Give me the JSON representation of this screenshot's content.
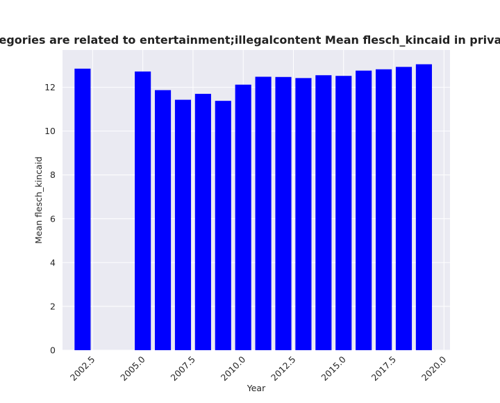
{
  "chart_data": {
    "type": "bar",
    "title": "Main categories are related to entertainment;illegalcontent Mean flesch_kincaid in privacy policies",
    "xlabel": "Year",
    "ylabel": "Mean flesch_kincaid",
    "x": [
      2002,
      2005,
      2006,
      2007,
      2008,
      2009,
      2010,
      2011,
      2012,
      2013,
      2014,
      2015,
      2016,
      2017,
      2018,
      2019
    ],
    "values": [
      12.85,
      12.72,
      11.87,
      11.43,
      11.7,
      11.38,
      12.12,
      12.48,
      12.47,
      12.42,
      12.55,
      12.52,
      12.76,
      12.82,
      12.93,
      13.05
    ],
    "xlim": [
      2001.0,
      2020.3
    ],
    "ylim": [
      0,
      13.7
    ],
    "xticks": [
      2002.5,
      2005.0,
      2007.5,
      2010.0,
      2012.5,
      2015.0,
      2017.5,
      2020.0
    ],
    "xtick_labels": [
      "2002.5",
      "2005.0",
      "2007.5",
      "2010.0",
      "2012.5",
      "2015.0",
      "2017.5",
      "2020.0"
    ],
    "yticks": [
      0,
      2,
      4,
      6,
      8,
      10,
      12
    ],
    "ytick_labels": [
      "0",
      "2",
      "4",
      "6",
      "8",
      "10",
      "12"
    ],
    "bar_width": 0.8,
    "grid": true,
    "colors": {
      "bar": "#0000ff",
      "plot_bg": "#eaeaf2",
      "grid": "#ffffff",
      "text": "#262626"
    }
  }
}
